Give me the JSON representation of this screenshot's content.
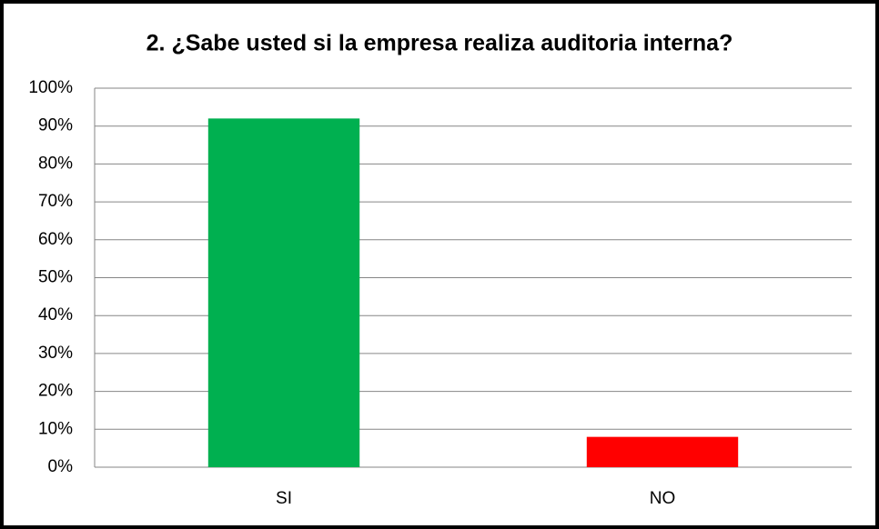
{
  "chart_data": {
    "type": "bar",
    "title": "2. ¿Sabe usted si la empresa realiza auditoria interna?",
    "categories": [
      "SI",
      "NO"
    ],
    "values": [
      92,
      8
    ],
    "colors": [
      "#00b050",
      "#ff0000"
    ],
    "ylim": [
      0,
      100
    ],
    "yticks": [
      {
        "value": 0,
        "label": "0%"
      },
      {
        "value": 10,
        "label": "10%"
      },
      {
        "value": 20,
        "label": "20%"
      },
      {
        "value": 30,
        "label": "30%"
      },
      {
        "value": 40,
        "label": "40%"
      },
      {
        "value": 50,
        "label": "50%"
      },
      {
        "value": 60,
        "label": "60%"
      },
      {
        "value": 70,
        "label": "70%"
      },
      {
        "value": 80,
        "label": "80%"
      },
      {
        "value": 90,
        "label": "90%"
      },
      {
        "value": 100,
        "label": "100%"
      }
    ],
    "grid": true
  }
}
